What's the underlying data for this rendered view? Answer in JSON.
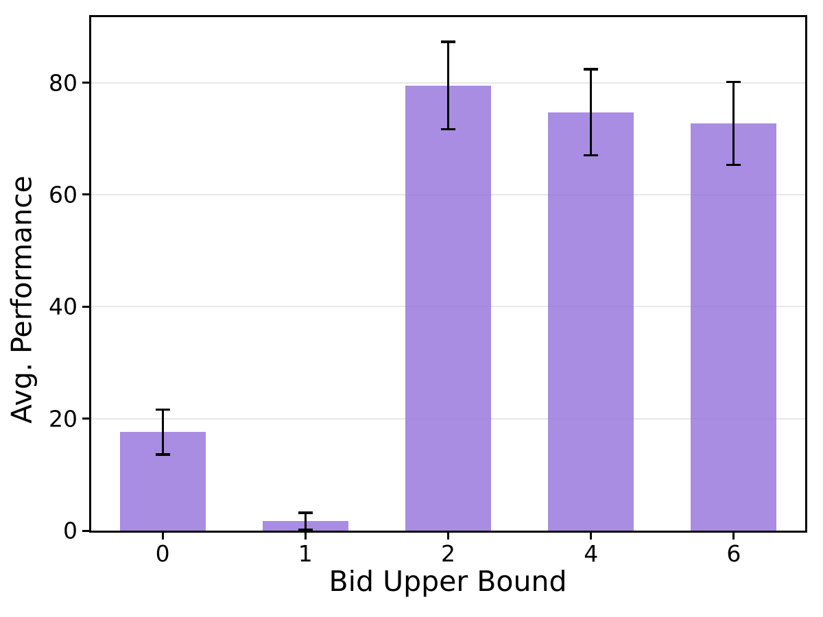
{
  "chart_data": {
    "type": "bar",
    "title": "",
    "xlabel": "Bid Upper Bound",
    "ylabel": "Avg. Performance",
    "categories": [
      "0",
      "1",
      "2",
      "4",
      "6"
    ],
    "values": [
      17.6,
      1.7,
      79.5,
      74.7,
      72.7
    ],
    "errors": [
      4.0,
      1.5,
      7.8,
      7.7,
      7.4
    ],
    "ylim": [
      0,
      91.7
    ],
    "yticks": [
      0,
      20,
      40,
      60,
      80
    ],
    "ytick_labels": [
      "0",
      "20",
      "40",
      "60",
      "80"
    ],
    "grid": true,
    "legend": "none",
    "bar_color": "#9370DB",
    "bar_alpha": 0.8,
    "grid_color": "#e8e8e8",
    "axis_color": "#000000",
    "error_color": "#000000"
  }
}
